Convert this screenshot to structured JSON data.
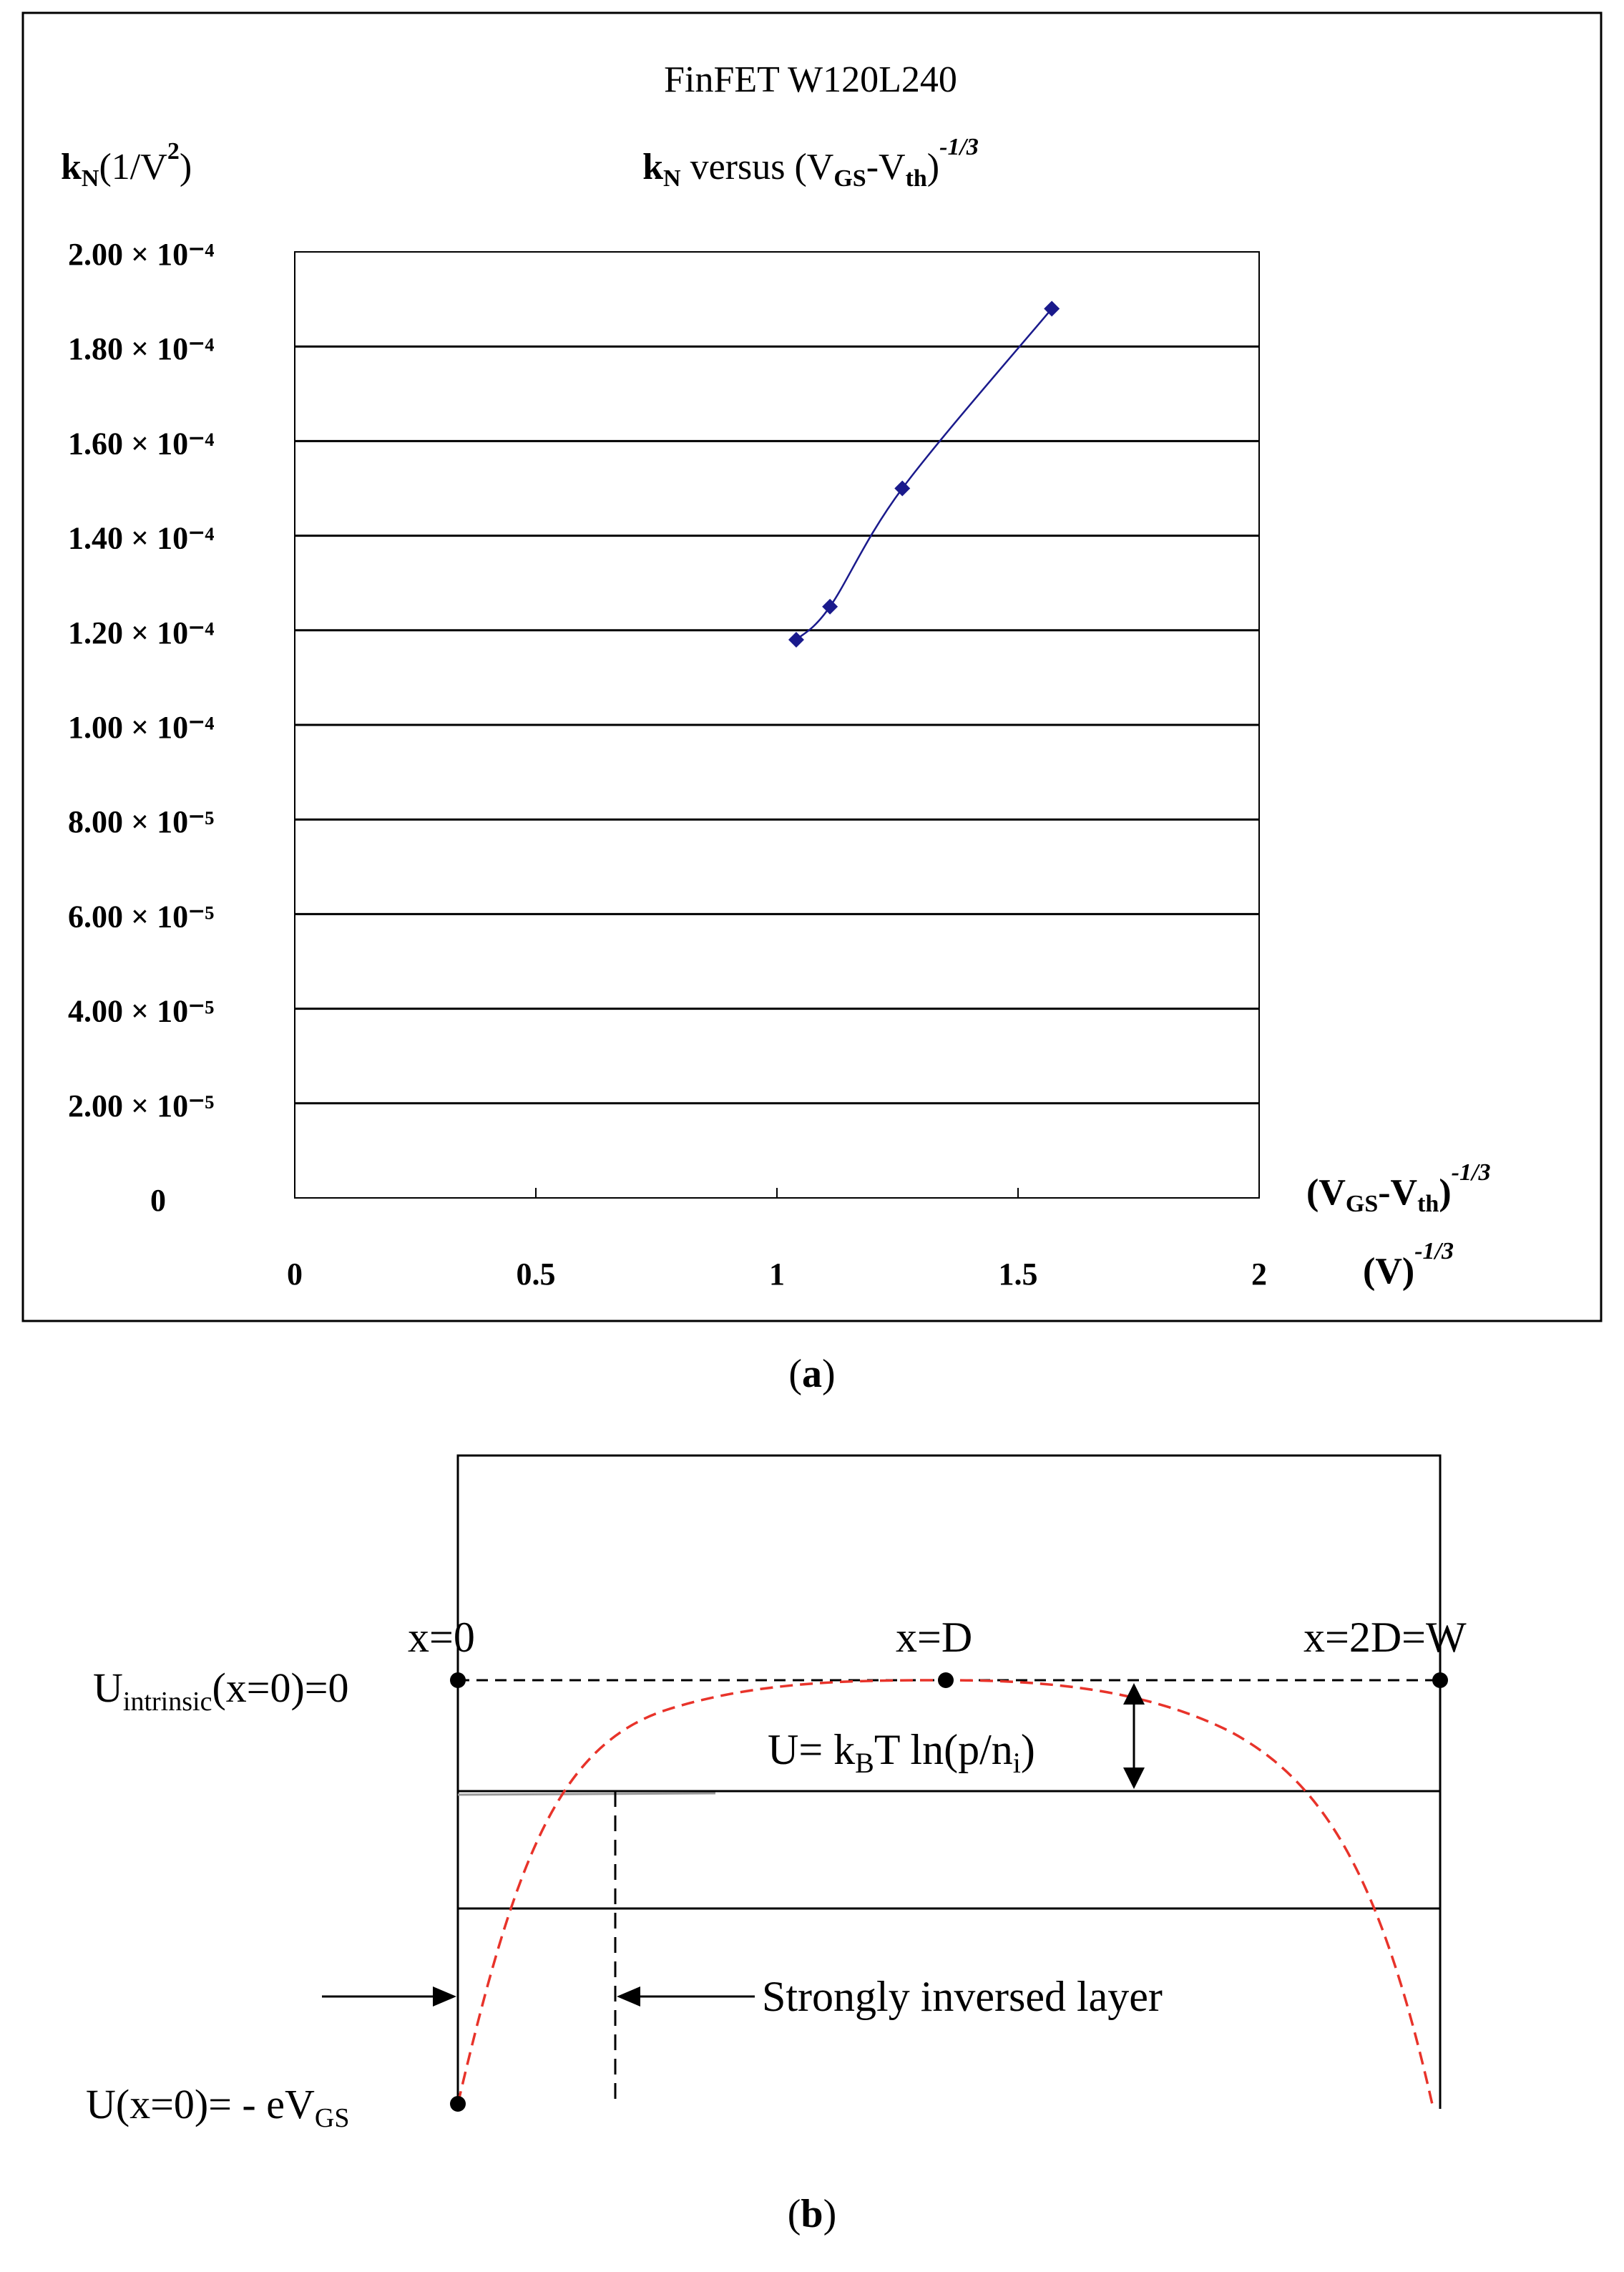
{
  "chart_data": [
    {
      "type": "line",
      "title": "FinFET W120L240",
      "subtitle": "kₙ versus (V GS-V th)⁻¹ᐟ³",
      "title_lines": [
        "FinFET W120L240",
        "kN versus (VGS-Vth)-1/3"
      ],
      "ylabel": "kN(1/V2)",
      "xlabel": "(VGS-Vth)-1/3 (V)-1/3",
      "xlim": [
        0,
        2
      ],
      "ylim": [
        0,
        0.0002
      ],
      "x_ticks": [
        "0",
        "0.5",
        "1",
        "1.5",
        "2"
      ],
      "y_ticks": [
        "0",
        "2.00 × 10⁻⁵",
        "4.00 × 10⁻⁵",
        "6.00 × 10⁻⁵",
        "8.00 × 10⁻⁵",
        "1.00 × 10⁻⁴",
        "1.20 × 10⁻⁴",
        "1.40 × 10⁻⁴",
        "1.60 × 10⁻⁴",
        "1.80 × 10⁻⁴",
        "2.00 × 10⁻⁴"
      ],
      "grid": "horizontal",
      "series": [
        {
          "color": "#1a1a8c",
          "x": [
            1.04,
            1.11,
            1.26,
            1.57
          ],
          "y": [
            0.000118,
            0.000125,
            0.00015,
            0.000188
          ]
        }
      ]
    },
    {
      "type": "diagram",
      "labels": {
        "x0": "x=0",
        "xD": "x=D",
        "x2D": "x=2D=W",
        "u_intrinsic": "Uintrinsic(x=0)=0",
        "u_formula": "U= kBT ln(p/ni)",
        "strong_layer": "Strongly inversed layer",
        "u_x0": "U(x=0)= - eVGS"
      },
      "curve_color": "#e8332a"
    }
  ],
  "panel_a": "(a)",
  "panel_b": "(b)"
}
